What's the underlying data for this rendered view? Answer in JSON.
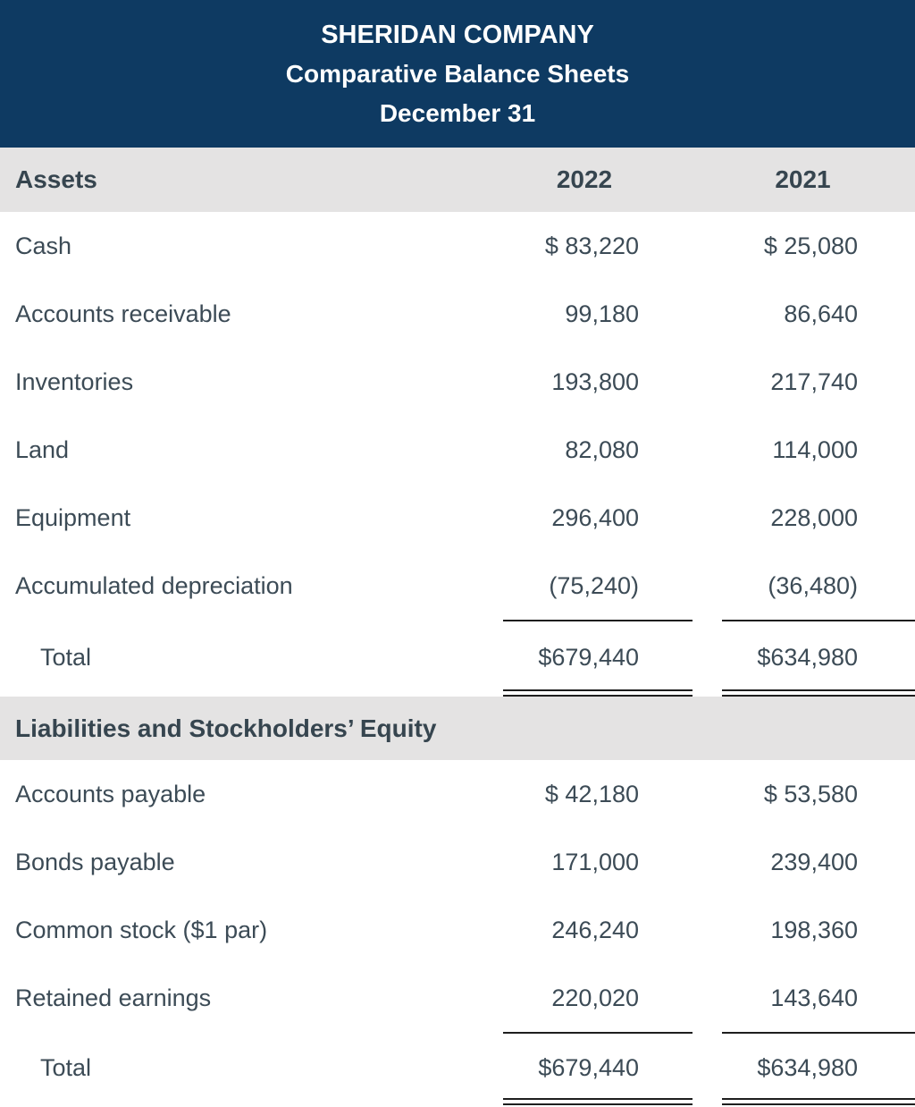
{
  "header": {
    "company": "SHERIDAN COMPANY",
    "subtitle": "Comparative Balance Sheets",
    "date": "December 31"
  },
  "columns": {
    "year1": "2022",
    "year2": "2021"
  },
  "colors": {
    "header_bg": "#0e3a62",
    "header_text": "#ffffff",
    "band_bg": "#e4e3e3",
    "body_text": "#3c4b56",
    "rule": "#1e1e1e"
  },
  "sections": [
    {
      "title": "Assets",
      "rows": [
        {
          "label": "Cash",
          "y2022": "$ 83,220",
          "y2021": "$ 25,080"
        },
        {
          "label": "Accounts receivable",
          "y2022": "99,180",
          "y2021": "86,640"
        },
        {
          "label": "Inventories",
          "y2022": "193,800",
          "y2021": "217,740"
        },
        {
          "label": "Land",
          "y2022": "82,080",
          "y2021": "114,000"
        },
        {
          "label": "Equipment",
          "y2022": "296,400",
          "y2021": "228,000"
        },
        {
          "label": "Accumulated depreciation",
          "y2022": "(75,240)",
          "y2021": "(36,480)"
        }
      ],
      "total": {
        "label": "Total",
        "y2022": "$679,440",
        "y2021": "$634,980"
      }
    },
    {
      "title": "Liabilities and Stockholders’ Equity",
      "rows": [
        {
          "label": "Accounts payable",
          "y2022": "$ 42,180",
          "y2021": "$ 53,580"
        },
        {
          "label": "Bonds payable",
          "y2022": "171,000",
          "y2021": "239,400"
        },
        {
          "label": "Common stock ($1 par)",
          "y2022": "246,240",
          "y2021": "198,360"
        },
        {
          "label": "Retained earnings",
          "y2022": "220,020",
          "y2021": "143,640"
        }
      ],
      "total": {
        "label": "Total",
        "y2022": "$679,440",
        "y2021": "$634,980"
      }
    }
  ]
}
